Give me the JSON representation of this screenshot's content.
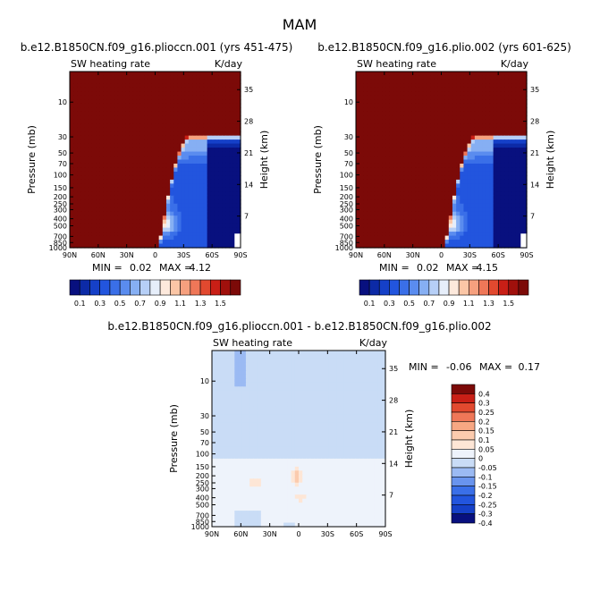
{
  "season": "MAM",
  "panels": [
    {
      "title": "b.e12.B1850CN.f09_g16.plioccn.001 (yrs 451-475)",
      "left_label": "SW heating rate",
      "right_label": "K/day",
      "min_label": "MIN =",
      "min_value": "0.02",
      "max_label": "MAX =",
      "max_value": "4.12"
    },
    {
      "title": "b.e12.B1850CN.f09_g16.plio.002 (yrs 601-625)",
      "left_label": "SW heating rate",
      "right_label": "K/day",
      "min_label": "MIN =",
      "min_value": "0.02",
      "max_label": "MAX =",
      "max_value": "4.15"
    },
    {
      "title": "b.e12.B1850CN.f09_g16.plioccn.001 - b.e12.B1850CN.f09_g16.plio.002",
      "left_label": "SW heating rate",
      "right_label": "K/day",
      "min_label": "MIN =",
      "min_value": "-0.06",
      "max_label": "MAX =",
      "max_value": "0.17"
    }
  ],
  "colors": {
    "ramp": [
      "#08107f",
      "#0c2aa6",
      "#1540c8",
      "#2255de",
      "#3a6fe8",
      "#5a8cef",
      "#86aff3",
      "#b6cff7",
      "#e6eefa",
      "#fde9dc",
      "#fbc6a6",
      "#f6a07e",
      "#ef7758",
      "#e2492f",
      "#c91f16",
      "#a0100c",
      "#7c0a08"
    ],
    "diff_ramp": [
      "#08107f",
      "#1540c8",
      "#2255de",
      "#3a6fe8",
      "#6994ee",
      "#9bbaf3",
      "#c9dcf6",
      "#eef3fb",
      "#fde6d6",
      "#fbcbae",
      "#f7a783",
      "#ef7758",
      "#e2492f",
      "#c91f16",
      "#7c0a08"
    ]
  },
  "chart_data": [
    {
      "type": "heatmap",
      "title": "b.e12.B1850CN.f09_g16.plioccn.001 (yrs 451-475)",
      "ylabel": "Pressure (mb)",
      "ylabel_right": "Height (km)",
      "x_ticks": [
        "90N",
        "60N",
        "30N",
        "0",
        "30S",
        "60S",
        "90S"
      ],
      "y_ticks_pressure": [
        10,
        30,
        50,
        70,
        100,
        150,
        200,
        250,
        300,
        400,
        500,
        700,
        850,
        1000
      ],
      "y_ticks_height": [
        35,
        28,
        21,
        14,
        7
      ],
      "colorbar_labels": [
        "0.1",
        "0.3",
        "0.5",
        "0.7",
        "0.9",
        "1.1",
        "1.3",
        "1.5"
      ],
      "min": 0.02,
      "max": 4.12
    },
    {
      "type": "heatmap",
      "title": "b.e12.B1850CN.f09_g16.plio.002 (yrs 601-625)",
      "ylabel": "Pressure (mb)",
      "ylabel_right": "Height (km)",
      "x_ticks": [
        "90N",
        "60N",
        "30N",
        "0",
        "30S",
        "60S",
        "90S"
      ],
      "y_ticks_pressure": [
        10,
        30,
        50,
        70,
        100,
        150,
        200,
        250,
        300,
        400,
        500,
        700,
        850,
        1000
      ],
      "y_ticks_height": [
        35,
        28,
        21,
        14,
        7
      ],
      "colorbar_labels": [
        "0.1",
        "0.3",
        "0.5",
        "0.7",
        "0.9",
        "1.1",
        "1.3",
        "1.5"
      ],
      "min": 0.02,
      "max": 4.15
    },
    {
      "type": "heatmap",
      "title": "b.e12.B1850CN.f09_g16.plioccn.001 - b.e12.B1850CN.f09_g16.plio.002",
      "ylabel": "Pressure (mb)",
      "ylabel_right": "Height (km)",
      "x_ticks": [
        "90N",
        "60N",
        "30N",
        "0",
        "30S",
        "60S",
        "90S"
      ],
      "y_ticks_pressure": [
        10,
        30,
        50,
        70,
        100,
        150,
        200,
        250,
        300,
        400,
        500,
        700,
        850,
        1000
      ],
      "y_ticks_height": [
        35,
        28,
        21,
        14,
        7
      ],
      "colorbar_labels": [
        "0.4",
        "0.3",
        "0.25",
        "0.2",
        "0.15",
        "0.1",
        "0.05",
        "0",
        "-0.05",
        "-0.1",
        "-0.15",
        "-0.2",
        "-0.25",
        "-0.3",
        "-0.4"
      ],
      "min": -0.06,
      "max": 0.17
    }
  ]
}
